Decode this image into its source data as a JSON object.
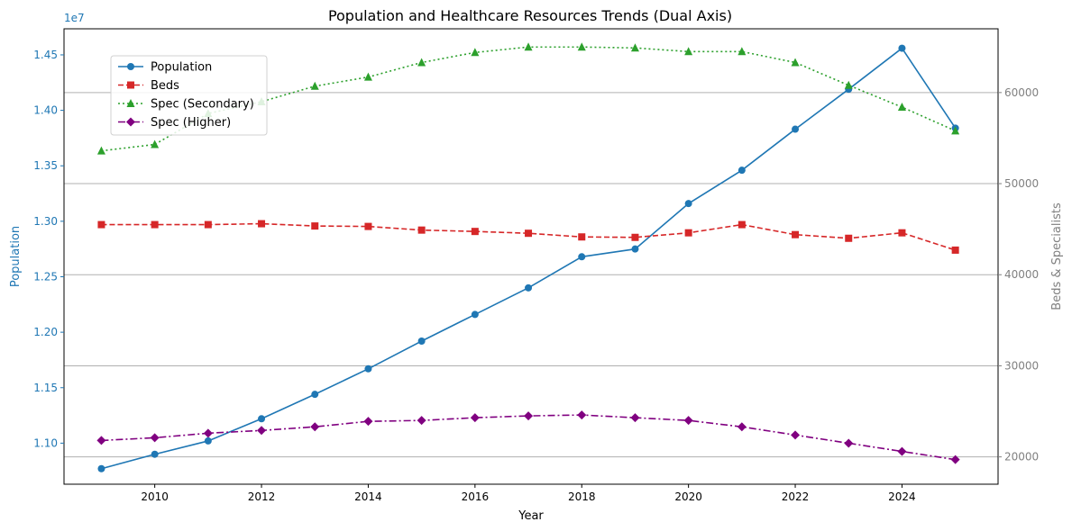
{
  "chart_data": {
    "type": "line",
    "title": "Population and Healthcare Resources Trends (Dual Axis)",
    "xlabel": "Year",
    "ylabel_left": "Population",
    "ylabel_right": "Beds & Specialists",
    "left_offset_label": "1e7",
    "xlim": [
      2008.3,
      2025.8
    ],
    "ylim_left": [
      10630000,
      14735000
    ],
    "ylim_right": [
      17000,
      67000
    ],
    "x_ticks": [
      2010,
      2012,
      2014,
      2016,
      2018,
      2020,
      2022,
      2024
    ],
    "left_ticks": [
      11000000,
      11500000,
      12000000,
      12500000,
      13000000,
      13500000,
      14000000,
      14500000
    ],
    "left_tick_labels": [
      "1.10",
      "1.15",
      "1.20",
      "1.25",
      "1.30",
      "1.35",
      "1.40",
      "1.45"
    ],
    "right_ticks": [
      20000,
      30000,
      40000,
      50000,
      60000
    ],
    "right_tick_labels": [
      "20000",
      "30000",
      "40000",
      "50000",
      "60000"
    ],
    "grid": "right-axis horizontal",
    "legend_placement": "upper-left",
    "x": [
      2009,
      2010,
      2011,
      2012,
      2013,
      2014,
      2015,
      2016,
      2017,
      2018,
      2019,
      2020,
      2021,
      2022,
      2023,
      2024,
      2025
    ],
    "series": [
      {
        "name": "Population",
        "axis": "left",
        "color": "#1f77b4",
        "marker": "circle",
        "dash": "solid",
        "values": [
          10770000,
          10900000,
          11020000,
          11220000,
          11440000,
          11670000,
          11920000,
          12160000,
          12400000,
          12680000,
          12750000,
          13160000,
          13460000,
          13830000,
          14190000,
          14560000,
          13840000
        ]
      },
      {
        "name": "Beds",
        "axis": "right",
        "color": "#d62728",
        "marker": "square",
        "dash": "dashed",
        "values": [
          45500,
          45500,
          45500,
          45600,
          45350,
          45300,
          44900,
          44750,
          44550,
          44150,
          44100,
          44600,
          45500,
          44400,
          44000,
          44600,
          42700
        ]
      },
      {
        "name": "Spec (Secondary)",
        "axis": "right",
        "color": "#2ca02c",
        "marker": "triangle",
        "dash": "dotted",
        "values": [
          53600,
          54300,
          57700,
          59000,
          60700,
          61700,
          63300,
          64400,
          65000,
          65000,
          64900,
          64500,
          64500,
          63300,
          60800,
          58400,
          55800
        ]
      },
      {
        "name": "Spec (Higher)",
        "axis": "right",
        "color": "#800080",
        "marker": "diamond",
        "dash": "dashdot",
        "values": [
          21800,
          22100,
          22600,
          22900,
          23300,
          23900,
          24000,
          24300,
          24500,
          24600,
          24300,
          24000,
          23300,
          22400,
          21500,
          20600,
          19700
        ]
      }
    ]
  }
}
